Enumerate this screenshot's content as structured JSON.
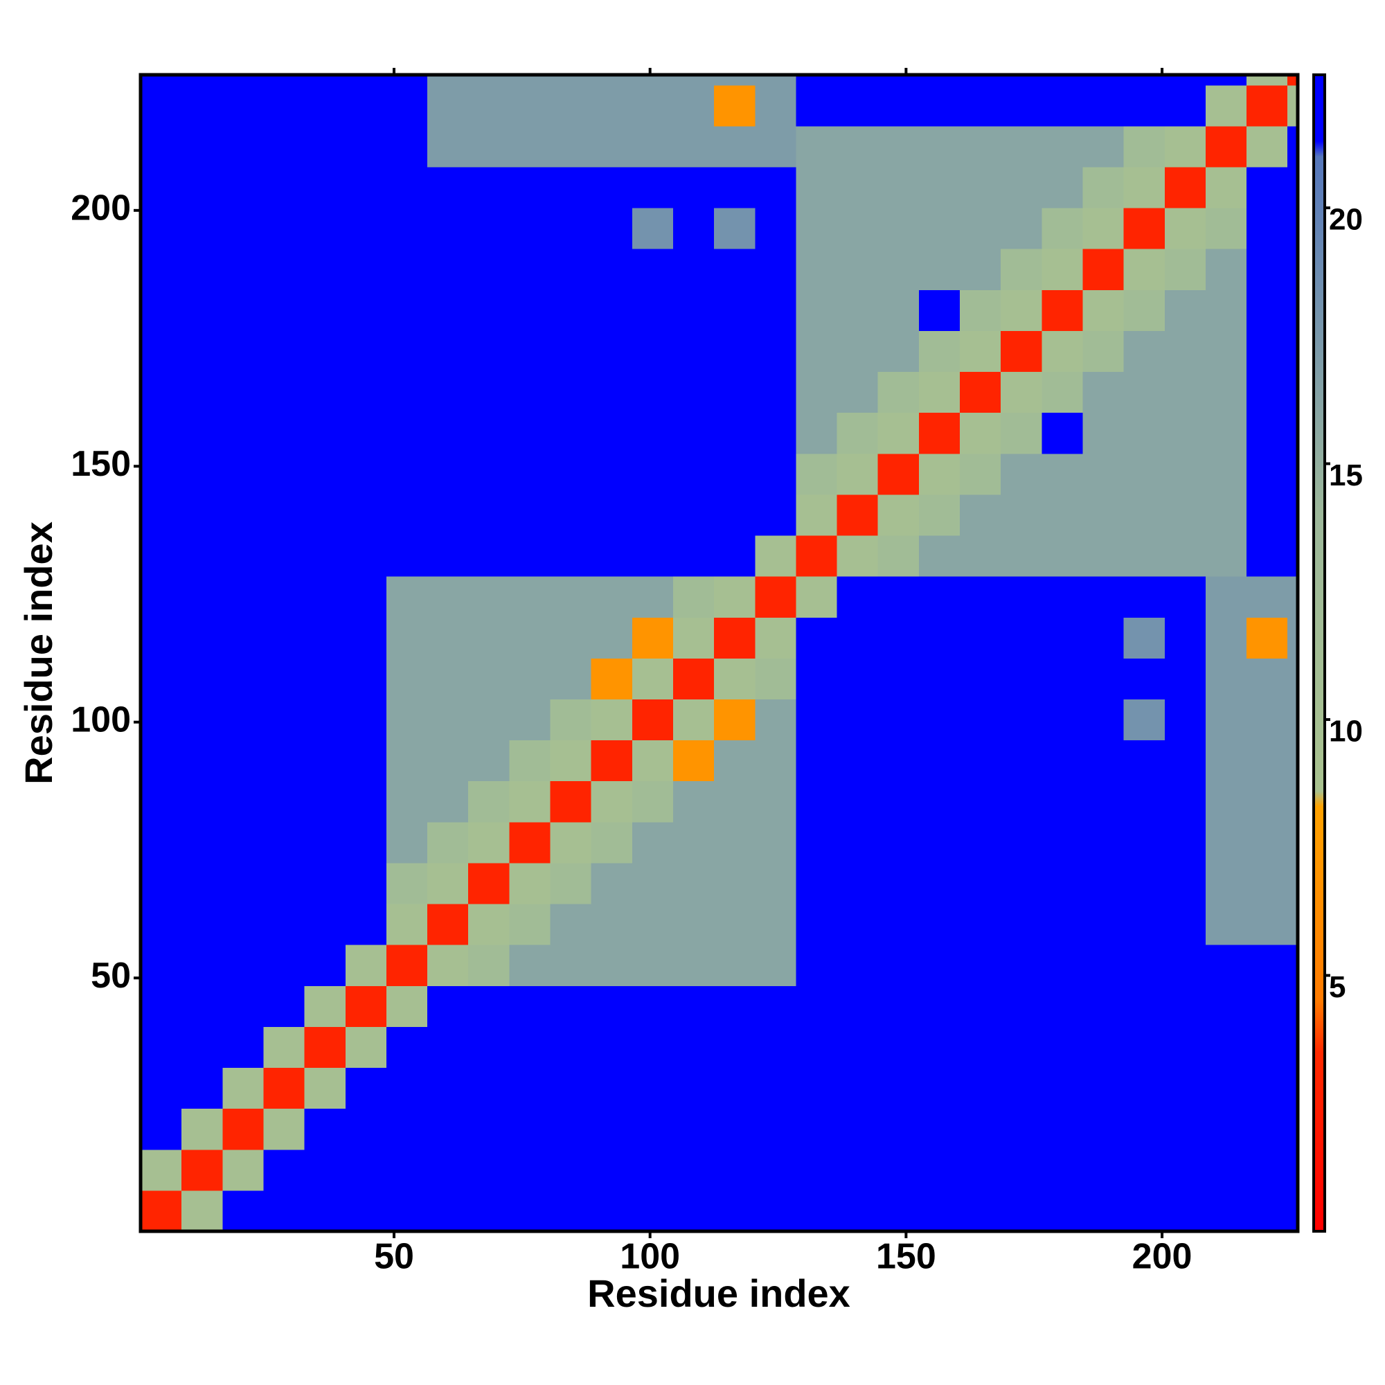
{
  "chart_data": {
    "type": "heatmap",
    "x_label": "Residue index",
    "y_label": "Residue index",
    "xlim": [
      0.5,
      226.5
    ],
    "ylim": [
      0.5,
      226.5
    ],
    "xticks": [
      50,
      100,
      150,
      200
    ],
    "yticks": [
      50,
      100,
      150,
      200
    ],
    "bins": [
      0.5,
      8.5,
      16.5,
      24.5,
      32.5,
      40.5,
      48.5,
      56.5,
      64.5,
      72.5,
      80.5,
      88.5,
      96.5,
      104.5,
      112.5,
      120.5,
      128.5,
      136.5,
      144.5,
      152.5,
      160.5,
      168.5,
      176.5,
      184.5,
      192.5,
      200.5,
      208.5,
      216.5,
      224.5,
      226.5
    ],
    "clim": [
      0,
      22.6
    ],
    "cticks": [
      5,
      10,
      15,
      20
    ],
    "colorscale": [
      [
        0,
        "#ff0000"
      ],
      [
        3.5,
        "#ff2a00"
      ],
      [
        4.5,
        "#ff7a00"
      ],
      [
        8.3,
        "#ffa200"
      ],
      [
        8.6,
        "#a9c28f"
      ],
      [
        14,
        "#9db89a"
      ],
      [
        18,
        "#7493ad"
      ],
      [
        21,
        "#5677bb"
      ],
      [
        21.3,
        "#0000ff"
      ],
      [
        22.6,
        "#0000ff"
      ]
    ],
    "z": [
      [
        3,
        10,
        22,
        22,
        22,
        22,
        22,
        22,
        22,
        22,
        22,
        22,
        22,
        22,
        22,
        22,
        22,
        22,
        22,
        22,
        22,
        22,
        22,
        22,
        22,
        22,
        22,
        22,
        22
      ],
      [
        10,
        3,
        10,
        22,
        22,
        22,
        22,
        22,
        22,
        22,
        22,
        22,
        22,
        22,
        22,
        22,
        22,
        22,
        22,
        22,
        22,
        22,
        22,
        22,
        22,
        22,
        22,
        22,
        22
      ],
      [
        22,
        10,
        3,
        10,
        22,
        22,
        22,
        22,
        22,
        22,
        22,
        22,
        22,
        22,
        22,
        22,
        22,
        22,
        22,
        22,
        22,
        22,
        22,
        22,
        22,
        22,
        22,
        22,
        22
      ],
      [
        22,
        22,
        10,
        3,
        10,
        22,
        22,
        22,
        22,
        22,
        22,
        22,
        22,
        22,
        22,
        22,
        22,
        22,
        22,
        22,
        22,
        22,
        22,
        22,
        22,
        22,
        22,
        22,
        22
      ],
      [
        22,
        22,
        22,
        10,
        3,
        10,
        22,
        22,
        22,
        22,
        22,
        22,
        22,
        22,
        22,
        22,
        22,
        22,
        22,
        22,
        22,
        22,
        22,
        22,
        22,
        22,
        22,
        22,
        22
      ],
      [
        22,
        22,
        22,
        22,
        10,
        3,
        10,
        22,
        22,
        22,
        22,
        22,
        22,
        22,
        22,
        22,
        22,
        22,
        22,
        22,
        22,
        22,
        22,
        22,
        22,
        22,
        22,
        22,
        22
      ],
      [
        22,
        22,
        22,
        22,
        22,
        10,
        3,
        10,
        12,
        16,
        16,
        16,
        16,
        16,
        16,
        16,
        22,
        22,
        22,
        22,
        22,
        22,
        22,
        22,
        22,
        22,
        22,
        22,
        22
      ],
      [
        22,
        22,
        22,
        22,
        22,
        22,
        10,
        3,
        10,
        12,
        16,
        16,
        16,
        16,
        16,
        16,
        22,
        22,
        22,
        22,
        22,
        22,
        22,
        22,
        22,
        22,
        17,
        17,
        17
      ],
      [
        22,
        22,
        22,
        22,
        22,
        22,
        12,
        10,
        3,
        10,
        12,
        16,
        16,
        16,
        16,
        16,
        22,
        22,
        22,
        22,
        22,
        22,
        22,
        22,
        22,
        22,
        17,
        17,
        17
      ],
      [
        22,
        22,
        22,
        22,
        22,
        22,
        16,
        12,
        10,
        3,
        10,
        12,
        16,
        16,
        16,
        16,
        22,
        22,
        22,
        22,
        22,
        22,
        22,
        22,
        22,
        22,
        17,
        17,
        17
      ],
      [
        22,
        22,
        22,
        22,
        22,
        22,
        16,
        16,
        12,
        10,
        3,
        10,
        12,
        16,
        16,
        16,
        22,
        22,
        22,
        22,
        22,
        22,
        22,
        22,
        22,
        22,
        17,
        17,
        17
      ],
      [
        22,
        22,
        22,
        22,
        22,
        22,
        16,
        16,
        16,
        12,
        10,
        3,
        10,
        7,
        16,
        16,
        22,
        22,
        22,
        22,
        22,
        22,
        22,
        22,
        22,
        22,
        17,
        17,
        17
      ],
      [
        22,
        22,
        22,
        22,
        22,
        22,
        16,
        16,
        16,
        16,
        12,
        10,
        3,
        10,
        7,
        16,
        22,
        22,
        22,
        22,
        22,
        22,
        22,
        22,
        18,
        22,
        17,
        17,
        17
      ],
      [
        22,
        22,
        22,
        22,
        22,
        22,
        16,
        16,
        16,
        16,
        16,
        7,
        10,
        3,
        10,
        12,
        22,
        22,
        22,
        22,
        22,
        22,
        22,
        22,
        22,
        22,
        17,
        17,
        17
      ],
      [
        22,
        22,
        22,
        22,
        22,
        22,
        16,
        16,
        16,
        16,
        16,
        16,
        7,
        10,
        3,
        10,
        22,
        22,
        22,
        22,
        22,
        22,
        22,
        22,
        18,
        22,
        17,
        7,
        17
      ],
      [
        22,
        22,
        22,
        22,
        22,
        22,
        16,
        16,
        16,
        16,
        16,
        16,
        16,
        12,
        10,
        3,
        10,
        22,
        22,
        22,
        22,
        22,
        22,
        22,
        22,
        22,
        17,
        17,
        17
      ],
      [
        22,
        22,
        22,
        22,
        22,
        22,
        22,
        22,
        22,
        22,
        22,
        22,
        22,
        22,
        22,
        10,
        3,
        10,
        12,
        16,
        16,
        16,
        16,
        16,
        16,
        16,
        16,
        22,
        22
      ],
      [
        22,
        22,
        22,
        22,
        22,
        22,
        22,
        22,
        22,
        22,
        22,
        22,
        22,
        22,
        22,
        22,
        10,
        3,
        10,
        12,
        16,
        16,
        16,
        16,
        16,
        16,
        16,
        22,
        22
      ],
      [
        22,
        22,
        22,
        22,
        22,
        22,
        22,
        22,
        22,
        22,
        22,
        22,
        22,
        22,
        22,
        22,
        12,
        10,
        3,
        10,
        12,
        16,
        16,
        16,
        16,
        16,
        16,
        22,
        22
      ],
      [
        22,
        22,
        22,
        22,
        22,
        22,
        22,
        22,
        22,
        22,
        22,
        22,
        22,
        22,
        22,
        22,
        16,
        12,
        10,
        3,
        10,
        12,
        22,
        16,
        16,
        16,
        16,
        22,
        22
      ],
      [
        22,
        22,
        22,
        22,
        22,
        22,
        22,
        22,
        22,
        22,
        22,
        22,
        22,
        22,
        22,
        22,
        16,
        16,
        12,
        10,
        3,
        10,
        12,
        16,
        16,
        16,
        16,
        22,
        22
      ],
      [
        22,
        22,
        22,
        22,
        22,
        22,
        22,
        22,
        22,
        22,
        22,
        22,
        22,
        22,
        22,
        22,
        16,
        16,
        16,
        12,
        10,
        3,
        10,
        12,
        16,
        16,
        16,
        22,
        22
      ],
      [
        22,
        22,
        22,
        22,
        22,
        22,
        22,
        22,
        22,
        22,
        22,
        22,
        22,
        22,
        22,
        22,
        16,
        16,
        16,
        22,
        12,
        10,
        3,
        10,
        12,
        16,
        16,
        22,
        22
      ],
      [
        22,
        22,
        22,
        22,
        22,
        22,
        22,
        22,
        22,
        22,
        22,
        22,
        22,
        22,
        22,
        22,
        16,
        16,
        16,
        16,
        16,
        12,
        10,
        3,
        10,
        12,
        16,
        22,
        22
      ],
      [
        22,
        22,
        22,
        22,
        22,
        22,
        22,
        22,
        22,
        22,
        22,
        22,
        18,
        22,
        18,
        22,
        16,
        16,
        16,
        16,
        16,
        16,
        12,
        10,
        3,
        10,
        12,
        22,
        22
      ],
      [
        22,
        22,
        22,
        22,
        22,
        22,
        22,
        22,
        22,
        22,
        22,
        22,
        22,
        22,
        22,
        22,
        16,
        16,
        16,
        16,
        16,
        16,
        16,
        12,
        10,
        3,
        10,
        22,
        22
      ],
      [
        22,
        22,
        22,
        22,
        22,
        22,
        22,
        17,
        17,
        17,
        17,
        17,
        17,
        17,
        17,
        17,
        16,
        16,
        16,
        16,
        16,
        16,
        16,
        16,
        12,
        10,
        3,
        10,
        22
      ],
      [
        22,
        22,
        22,
        22,
        22,
        22,
        22,
        17,
        17,
        17,
        17,
        17,
        17,
        17,
        7,
        17,
        22,
        22,
        22,
        22,
        22,
        22,
        22,
        22,
        22,
        22,
        10,
        3,
        10
      ],
      [
        22,
        22,
        22,
        22,
        22,
        22,
        22,
        17,
        17,
        17,
        17,
        17,
        17,
        17,
        17,
        17,
        22,
        22,
        22,
        22,
        22,
        22,
        22,
        22,
        22,
        22,
        22,
        10,
        3
      ]
    ]
  }
}
